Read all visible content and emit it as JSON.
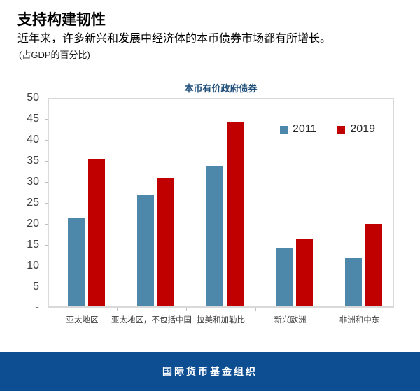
{
  "header": {
    "title": "支持构建韧性",
    "subtitle": "近年来，许多新兴和发展中经济体的本币债券市场都有所增长。",
    "unit_note": "(占GDP的百分比)"
  },
  "chart_data": {
    "type": "bar",
    "title": "本币有价政府债券",
    "title_color": "#1f4e79",
    "categories": [
      "亚太地区",
      "亚太地区，不包括中国",
      "拉美和加勒比",
      "新兴欧洲",
      "非洲和中东"
    ],
    "series": [
      {
        "name": "2011",
        "color": "#4d87a9",
        "values": [
          21,
          26.5,
          33.5,
          14,
          11.5
        ]
      },
      {
        "name": "2019",
        "color": "#c00000",
        "values": [
          35,
          30.5,
          44,
          16,
          19.7
        ]
      }
    ],
    "ylim": [
      0,
      50
    ],
    "ytick_interval": 5,
    "yticks": [
      {
        "value": 0,
        "label": "-"
      },
      {
        "value": 5,
        "label": "5"
      },
      {
        "value": 10,
        "label": "10"
      },
      {
        "value": 15,
        "label": "15"
      },
      {
        "value": 20,
        "label": "20"
      },
      {
        "value": 25,
        "label": "25"
      },
      {
        "value": 30,
        "label": "30"
      },
      {
        "value": 35,
        "label": "35"
      },
      {
        "value": 40,
        "label": "40"
      },
      {
        "value": 45,
        "label": "45"
      },
      {
        "value": 50,
        "label": "50"
      }
    ],
    "legend_position": "top-right",
    "grid": false,
    "frame_color": "#d9d9d9"
  },
  "footer": {
    "label": "国际货币基金组织",
    "bg_color": "#0d4e93"
  }
}
